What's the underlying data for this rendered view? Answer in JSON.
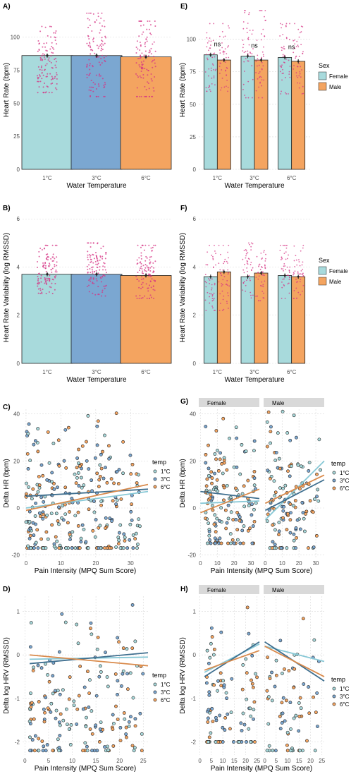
{
  "colors": {
    "c1": "#a8dadc",
    "c3": "#7ba7d1",
    "c6": "#f4a460",
    "female": "#a8dadc",
    "male": "#f4a460",
    "jitter": "#d63384",
    "line1": "#87c8d6",
    "line3": "#3f6f8f",
    "line6": "#d98a4b"
  },
  "legends": {
    "sex_title": "Sex",
    "sex_items": [
      "Female",
      "Male"
    ],
    "temp_title": "temp",
    "temp_items": [
      "1°C",
      "3°C",
      "6°C"
    ]
  },
  "facets": [
    "Female",
    "Male"
  ],
  "chart_data": [
    {
      "panel": "A)",
      "type": "bar",
      "categories": [
        "1°C",
        "3°C",
        "6°C"
      ],
      "values": [
        86,
        86,
        85
      ],
      "xlabel": "Water Temperature",
      "ylabel": "Heart Rate (bpm)",
      "ylim": [
        0,
        120
      ],
      "yticks": [
        0,
        25,
        50,
        75,
        100
      ],
      "jitter_range": [
        [
          58,
          108
        ],
        [
          55,
          118
        ],
        [
          55,
          112
        ]
      ]
    },
    {
      "panel": "B)",
      "type": "bar",
      "categories": [
        "1°C",
        "3°C",
        "6°C"
      ],
      "values": [
        3.7,
        3.7,
        3.65
      ],
      "xlabel": "Water Temperature",
      "ylabel": "Heart Rate Variability (log RMSSD)",
      "ylim": [
        0,
        6.3
      ],
      "yticks": [
        0,
        2,
        4,
        6
      ],
      "jitter_range": [
        [
          2.9,
          4.9
        ],
        [
          2.8,
          5.0
        ],
        [
          2.7,
          4.9
        ]
      ]
    },
    {
      "panel": "C)",
      "type": "scatter",
      "xlabel": "Pain Intensity (MPQ Sum Score)",
      "ylabel": "Delta HR (bpm)",
      "xlim": [
        -1,
        35
      ],
      "ylim": [
        -21,
        42
      ],
      "xticks": [
        0,
        10,
        20,
        30
      ],
      "yticks": [
        -20,
        0,
        20,
        40
      ],
      "x_range": [
        0,
        33
      ],
      "y_range": [
        -17,
        41
      ],
      "series": [
        {
          "name": "1°C",
          "fit": [
            [
              0,
              0
            ],
            [
              35,
              7
            ]
          ]
        },
        {
          "name": "3°C",
          "fit": [
            [
              0,
              5
            ],
            [
              35,
              8
            ]
          ]
        },
        {
          "name": "6°C",
          "fit": [
            [
              0,
              -1
            ],
            [
              35,
              10
            ]
          ]
        }
      ]
    },
    {
      "panel": "D)",
      "type": "scatter",
      "xlabel": "Pain Intensity (MPQ Sum Score)",
      "ylabel": "Delta log HRV (RMSSD)",
      "xlim": [
        -0.5,
        26
      ],
      "ylim": [
        -2.3,
        1.35
      ],
      "xticks": [
        0,
        5,
        10,
        15,
        20,
        25
      ],
      "yticks": [
        -2,
        -1,
        0,
        1
      ],
      "x_range": [
        1,
        25
      ],
      "y_range": [
        -2.2,
        1.25
      ],
      "series": [
        {
          "name": "1°C",
          "fit": [
            [
              1,
              -0.1
            ],
            [
              26,
              -0.05
            ]
          ]
        },
        {
          "name": "3°C",
          "fit": [
            [
              1,
              -0.2
            ],
            [
              26,
              0.05
            ]
          ]
        },
        {
          "name": "6°C",
          "fit": [
            [
              1,
              0.0
            ],
            [
              26,
              -0.25
            ]
          ]
        }
      ]
    },
    {
      "panel": "E)",
      "type": "bar",
      "categories": [
        "1°C",
        "3°C",
        "6°C"
      ],
      "series": [
        {
          "name": "Female",
          "values": [
            88,
            87,
            86
          ]
        },
        {
          "name": "Male",
          "values": [
            84,
            84,
            83
          ]
        }
      ],
      "annotations": [
        "ns",
        "ns",
        "ns"
      ],
      "xlabel": "Water Temperature",
      "ylabel": "Heart Rate (bpm)",
      "ylim": [
        0,
        122
      ],
      "yticks": [
        0,
        25,
        50,
        75,
        100
      ],
      "jitter_range": [
        [
          60,
          112
        ],
        [
          55,
          122
        ],
        [
          58,
          112
        ]
      ]
    },
    {
      "panel": "F)",
      "type": "bar",
      "categories": [
        "1°C",
        "3°C",
        "6°C"
      ],
      "series": [
        {
          "name": "Female",
          "values": [
            3.6,
            3.6,
            3.65
          ]
        },
        {
          "name": "Male",
          "values": [
            3.8,
            3.75,
            3.6
          ]
        }
      ],
      "xlabel": "Water Temperature",
      "ylabel": "Heart Rate Variability (log RMSSD)",
      "ylim": [
        0,
        6.3
      ],
      "yticks": [
        0,
        2,
        4,
        6
      ],
      "jitter_range": [
        [
          2.2,
          4.9
        ],
        [
          2.6,
          5.0
        ],
        [
          2.7,
          4.9
        ]
      ]
    },
    {
      "panel": "G)",
      "type": "scatter",
      "xlabel": "Pain Intensity (MPQ Sum Score)",
      "ylabel": "Delta HR (bpm)",
      "xlim": [
        -1,
        35
      ],
      "ylim": [
        -21,
        42
      ],
      "xticks": [
        0,
        10,
        20,
        30
      ],
      "yticks": [
        -20,
        0,
        20,
        40
      ],
      "x_range": [
        [
          3,
          33
        ],
        [
          1,
          33
        ]
      ],
      "y_range": [
        [
          -15,
          38
        ],
        [
          -17,
          41
        ]
      ],
      "series": [
        {
          "name": "1°C",
          "fit": [
            [
              [
                0,
                2
              ],
              [
                35,
                3
              ]
            ],
            [
              [
                0,
                -5
              ],
              [
                35,
                20
              ]
            ]
          ]
        },
        {
          "name": "3°C",
          "fit": [
            [
              [
                0,
                7
              ],
              [
                35,
                4
              ]
            ],
            [
              [
                0,
                -1
              ],
              [
                35,
                12
              ]
            ]
          ]
        },
        {
          "name": "6°C",
          "fit": [
            [
              [
                0,
                -2
              ],
              [
                35,
                8
              ]
            ],
            [
              [
                0,
                2
              ],
              [
                35,
                14
              ]
            ]
          ]
        }
      ]
    },
    {
      "panel": "H)",
      "type": "scatter",
      "xlabel": "Pain Intensity (MPQ Sum Score)",
      "ylabel": "Delta log HRV (RMSSD)",
      "xlim": [
        -0.5,
        26
      ],
      "ylim": [
        -2.3,
        1.35
      ],
      "xticks": [
        0,
        5,
        10,
        15,
        20,
        25
      ],
      "yticks": [
        -2,
        -1,
        0,
        1
      ],
      "x_range": [
        [
          3,
          25
        ],
        [
          1,
          24
        ]
      ],
      "y_range": [
        [
          -2.0,
          1.2
        ],
        [
          -2.2,
          1.0
        ]
      ],
      "series": [
        {
          "name": "1°C",
          "fit": [
            [
              [
                2,
                -0.4
              ],
              [
                26,
                0.25
              ]
            ],
            [
              [
                0,
                0.2
              ],
              [
                26,
                -0.15
              ]
            ]
          ]
        },
        {
          "name": "3°C",
          "fit": [
            [
              [
                2,
                -0.5
              ],
              [
                26,
                0.3
              ]
            ],
            [
              [
                0,
                0.3
              ],
              [
                26,
                -0.6
              ]
            ]
          ]
        },
        {
          "name": "6°C",
          "fit": [
            [
              [
                2,
                -0.35
              ],
              [
                26,
                0.1
              ]
            ],
            [
              [
                0,
                0.2
              ],
              [
                26,
                -0.5
              ]
            ]
          ]
        }
      ]
    }
  ]
}
